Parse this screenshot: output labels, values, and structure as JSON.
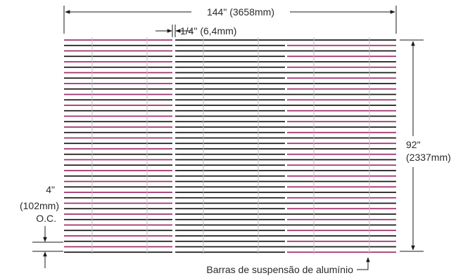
{
  "dimensions": {
    "width_label": "144\" (3658mm)",
    "gap_label": "1/4\" (6,4mm)",
    "height_label_line1": "92\"",
    "height_label_line2": "(2337mm)",
    "spacing_label_line1": "4\"",
    "spacing_label_line2": "(102mm)",
    "spacing_label_line3": "O.C."
  },
  "callout": {
    "label": "Barras de suspensão de alumínio"
  },
  "colors": {
    "panel_a": "#a0306a",
    "panel_b": "#1a1a1a",
    "support_bars": "#bcbcbc",
    "dimension_lines": "#1a1a1a"
  }
}
